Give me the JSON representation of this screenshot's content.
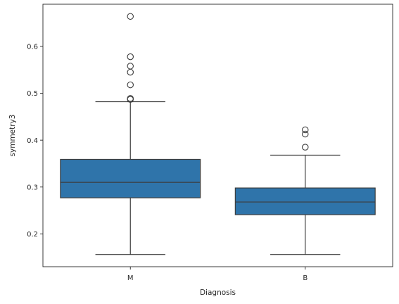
{
  "chart_data": {
    "type": "box",
    "title": "",
    "xlabel": "Diagnosis",
    "ylabel": "symmetry3",
    "ylim": [
      0.13,
      0.69
    ],
    "yticks": [
      0.2,
      0.3,
      0.4,
      0.5,
      0.6
    ],
    "ytick_labels": [
      "0.2",
      "0.3",
      "0.4",
      "0.5",
      "0.6"
    ],
    "categories": [
      "M",
      "B"
    ],
    "box_color": "#2f74aa",
    "line_color": "#3d3d3d",
    "grid": false,
    "boxes": [
      {
        "category": "M",
        "whisker_low": 0.156,
        "q1": 0.277,
        "median": 0.31,
        "q3": 0.359,
        "whisker_high": 0.482,
        "outliers": [
          0.664,
          0.578,
          0.558,
          0.545,
          0.518,
          0.489,
          0.487
        ]
      },
      {
        "category": "B",
        "whisker_low": 0.156,
        "q1": 0.241,
        "median": 0.268,
        "q3": 0.298,
        "whisker_high": 0.368,
        "outliers": [
          0.422,
          0.413,
          0.385
        ]
      }
    ]
  }
}
